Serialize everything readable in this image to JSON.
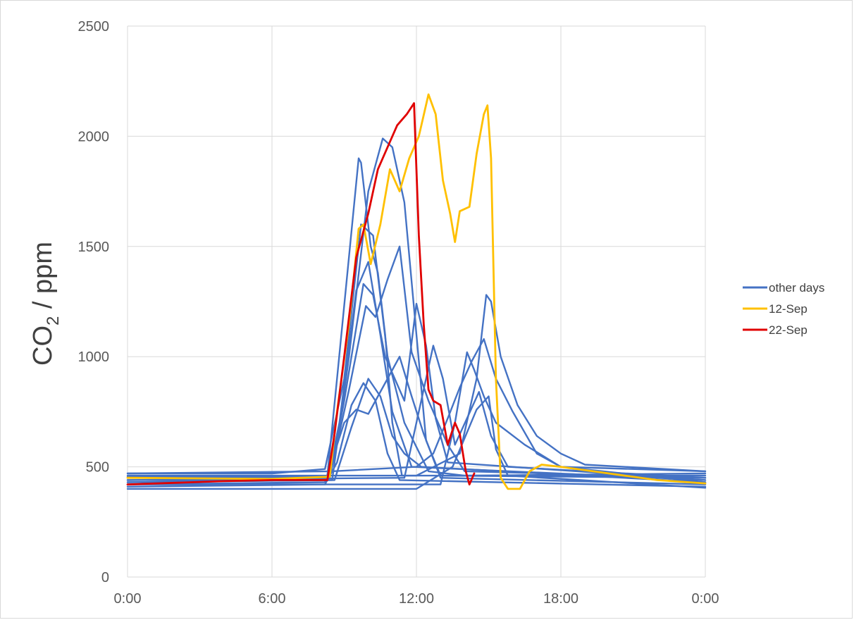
{
  "chart_data": {
    "type": "line",
    "title": "",
    "xlabel": "",
    "ylabel": {
      "main": "CO",
      "sub": "2",
      "rest": " / ppm"
    },
    "x_unit": "time of day",
    "xlim": [
      "0:00",
      "24:00"
    ],
    "ylim": [
      0,
      2500
    ],
    "x_ticks": [
      {
        "label": "0:00",
        "hour": 0
      },
      {
        "label": "6:00",
        "hour": 6
      },
      {
        "label": "12:00",
        "hour": 12
      },
      {
        "label": "18:00",
        "hour": 18
      },
      {
        "label": "0:00",
        "hour": 24
      }
    ],
    "y_ticks": [
      0,
      500,
      1000,
      1500,
      2000,
      2500
    ],
    "grid": true,
    "legend_position": "right",
    "legend": [
      {
        "name": "other days",
        "color": "#4472c4"
      },
      {
        "name": "12-Sep",
        "color": "#ffc000"
      },
      {
        "name": "22-Sep",
        "color": "#e00000"
      }
    ],
    "series": [
      {
        "name": "other days",
        "color": "#4472c4",
        "points": [
          [
            0,
            470
          ],
          [
            6,
            470
          ],
          [
            8.2,
            490
          ],
          [
            9,
            900
          ],
          [
            9.7,
            1600
          ],
          [
            10.2,
            1550
          ],
          [
            10.8,
            1000
          ],
          [
            11.5,
            700
          ],
          [
            12.5,
            480
          ],
          [
            14,
            460
          ],
          [
            24,
            470
          ]
        ]
      },
      {
        "name": "other days",
        "color": "#4472c4",
        "points": [
          [
            0,
            430
          ],
          [
            8.3,
            440
          ],
          [
            8.8,
            700
          ],
          [
            9.5,
            1300
          ],
          [
            10,
            1430
          ],
          [
            10.5,
            1100
          ],
          [
            11,
            750
          ],
          [
            11.8,
            500
          ],
          [
            24,
            440
          ]
        ]
      },
      {
        "name": "other days",
        "color": "#4472c4",
        "points": [
          [
            0,
            410
          ],
          [
            8.2,
            420
          ],
          [
            8.7,
            520
          ],
          [
            9.3,
            780
          ],
          [
            9.8,
            880
          ],
          [
            10.3,
            800
          ],
          [
            10.8,
            560
          ],
          [
            11.3,
            440
          ],
          [
            24,
            410
          ]
        ]
      },
      {
        "name": "other days",
        "color": "#4472c4",
        "points": [
          [
            0,
            455
          ],
          [
            8.3,
            460
          ],
          [
            8.7,
            900
          ],
          [
            9.6,
            1900
          ],
          [
            9.7,
            1880
          ],
          [
            10.1,
            1500
          ],
          [
            10.4,
            1380
          ],
          [
            10.7,
            1100
          ],
          [
            11,
            700
          ],
          [
            11.4,
            460
          ],
          [
            24,
            460
          ]
        ]
      },
      {
        "name": "other days",
        "color": "#4472c4",
        "points": [
          [
            0,
            440
          ],
          [
            8.5,
            440
          ],
          [
            9.2,
            1000
          ],
          [
            10,
            1750
          ],
          [
            10.6,
            1990
          ],
          [
            11,
            1950
          ],
          [
            11.5,
            1700
          ],
          [
            12,
            1100
          ],
          [
            12.4,
            620
          ],
          [
            13,
            460
          ],
          [
            24,
            450
          ]
        ]
      },
      {
        "name": "other days",
        "color": "#4472c4",
        "points": [
          [
            0,
            420
          ],
          [
            8.2,
            430
          ],
          [
            9,
            700
          ],
          [
            9.5,
            760
          ],
          [
            10,
            740
          ],
          [
            10.8,
            900
          ],
          [
            11.3,
            1000
          ],
          [
            11.8,
            820
          ],
          [
            12.3,
            650
          ],
          [
            13,
            450
          ],
          [
            24,
            420
          ]
        ]
      },
      {
        "name": "other days",
        "color": "#4472c4",
        "points": [
          [
            0,
            450
          ],
          [
            8.4,
            455
          ],
          [
            9.2,
            850
          ],
          [
            9.9,
            1230
          ],
          [
            10.3,
            1180
          ],
          [
            10.8,
            1350
          ],
          [
            11.3,
            1500
          ],
          [
            11.8,
            1020
          ],
          [
            12.5,
            800
          ],
          [
            13.3,
            600
          ],
          [
            14,
            480
          ],
          [
            24,
            450
          ]
        ]
      },
      {
        "name": "other days",
        "color": "#4472c4",
        "points": [
          [
            0,
            430
          ],
          [
            8.6,
            440
          ],
          [
            9.3,
            680
          ],
          [
            10,
            900
          ],
          [
            10.5,
            820
          ],
          [
            11,
            640
          ],
          [
            11.5,
            560
          ],
          [
            12.2,
            500
          ],
          [
            24,
            430
          ]
        ]
      },
      {
        "name": "other days",
        "color": "#4472c4",
        "points": [
          [
            0,
            440
          ],
          [
            8.4,
            450
          ],
          [
            9,
            800
          ],
          [
            9.8,
            1330
          ],
          [
            10.2,
            1280
          ],
          [
            10.7,
            1000
          ],
          [
            11.5,
            800
          ],
          [
            12,
            1240
          ],
          [
            12.4,
            1050
          ],
          [
            12.8,
            720
          ],
          [
            13.3,
            520
          ],
          [
            24,
            440
          ]
        ]
      },
      {
        "name": "other days",
        "color": "#4472c4",
        "points": [
          [
            0,
            470
          ],
          [
            8.5,
            480
          ],
          [
            12,
            500
          ],
          [
            12.7,
            560
          ],
          [
            13.3,
            720
          ],
          [
            13.8,
            860
          ],
          [
            14.3,
            980
          ],
          [
            14.8,
            1080
          ],
          [
            15.3,
            900
          ],
          [
            16,
            750
          ],
          [
            17,
            560
          ],
          [
            18,
            500
          ],
          [
            24,
            480
          ]
        ]
      },
      {
        "name": "other days",
        "color": "#4472c4",
        "points": [
          [
            0,
            460
          ],
          [
            12,
            460
          ],
          [
            13.8,
            560
          ],
          [
            14.5,
            900
          ],
          [
            14.9,
            1280
          ],
          [
            15.1,
            1250
          ],
          [
            15.5,
            1000
          ],
          [
            16.2,
            780
          ],
          [
            17,
            640
          ],
          [
            18,
            560
          ],
          [
            19,
            510
          ],
          [
            24,
            480
          ]
        ]
      },
      {
        "name": "other days",
        "color": "#4472c4",
        "points": [
          [
            0,
            440
          ],
          [
            11.5,
            450
          ],
          [
            12.2,
            800
          ],
          [
            12.7,
            1050
          ],
          [
            13.1,
            900
          ],
          [
            13.6,
            600
          ],
          [
            14.1,
            720
          ],
          [
            14.6,
            840
          ],
          [
            15.1,
            640
          ],
          [
            15.8,
            500
          ],
          [
            24,
            450
          ]
        ]
      },
      {
        "name": "other days",
        "color": "#4472c4",
        "points": [
          [
            0,
            420
          ],
          [
            13,
            420
          ],
          [
            13.6,
            700
          ],
          [
            14.1,
            1020
          ],
          [
            14.4,
            940
          ],
          [
            14.8,
            820
          ],
          [
            15.3,
            700
          ],
          [
            16.5,
            600
          ],
          [
            18,
            500
          ],
          [
            24,
            430
          ]
        ]
      },
      {
        "name": "other days",
        "color": "#4472c4",
        "points": [
          [
            0,
            400
          ],
          [
            12,
            400
          ],
          [
            13.5,
            500
          ],
          [
            14.5,
            760
          ],
          [
            15,
            820
          ],
          [
            15.3,
            580
          ],
          [
            15.8,
            460
          ],
          [
            24,
            405
          ]
        ]
      },
      {
        "name": "12-Sep",
        "color": "#ffc000",
        "points": [
          [
            0,
            450
          ],
          [
            6,
            445
          ],
          [
            8.4,
            455
          ],
          [
            8.7,
            750
          ],
          [
            9.2,
            1150
          ],
          [
            9.6,
            1580
          ],
          [
            9.8,
            1600
          ],
          [
            10.1,
            1420
          ],
          [
            10.5,
            1600
          ],
          [
            10.9,
            1850
          ],
          [
            11.3,
            1750
          ],
          [
            11.7,
            1900
          ],
          [
            12.1,
            2000
          ],
          [
            12.5,
            2190
          ],
          [
            12.8,
            2100
          ],
          [
            13.1,
            1800
          ],
          [
            13.4,
            1650
          ],
          [
            13.6,
            1520
          ],
          [
            13.8,
            1660
          ],
          [
            14.2,
            1680
          ],
          [
            14.5,
            1920
          ],
          [
            14.8,
            2100
          ],
          [
            14.95,
            2140
          ],
          [
            15.1,
            1900
          ],
          [
            15.3,
            900
          ],
          [
            15.5,
            450
          ],
          [
            15.8,
            400
          ],
          [
            16.3,
            400
          ],
          [
            16.7,
            480
          ],
          [
            17.2,
            510
          ],
          [
            18,
            500
          ],
          [
            20,
            470
          ],
          [
            22,
            440
          ],
          [
            24,
            425
          ]
        ]
      },
      {
        "name": "22-Sep",
        "color": "#e00000",
        "points": [
          [
            0,
            420
          ],
          [
            4,
            435
          ],
          [
            6,
            440
          ],
          [
            8.3,
            440
          ],
          [
            8.6,
            650
          ],
          [
            9,
            1000
          ],
          [
            9.5,
            1450
          ],
          [
            10,
            1650
          ],
          [
            10.4,
            1850
          ],
          [
            10.8,
            1950
          ],
          [
            11.2,
            2050
          ],
          [
            11.6,
            2100
          ],
          [
            11.9,
            2150
          ],
          [
            12.1,
            1550
          ],
          [
            12.3,
            1150
          ],
          [
            12.5,
            850
          ],
          [
            12.7,
            800
          ],
          [
            13,
            780
          ],
          [
            13.3,
            600
          ],
          [
            13.6,
            700
          ],
          [
            13.8,
            650
          ],
          [
            14.05,
            480
          ],
          [
            14.2,
            420
          ],
          [
            14.4,
            470
          ]
        ]
      }
    ]
  }
}
